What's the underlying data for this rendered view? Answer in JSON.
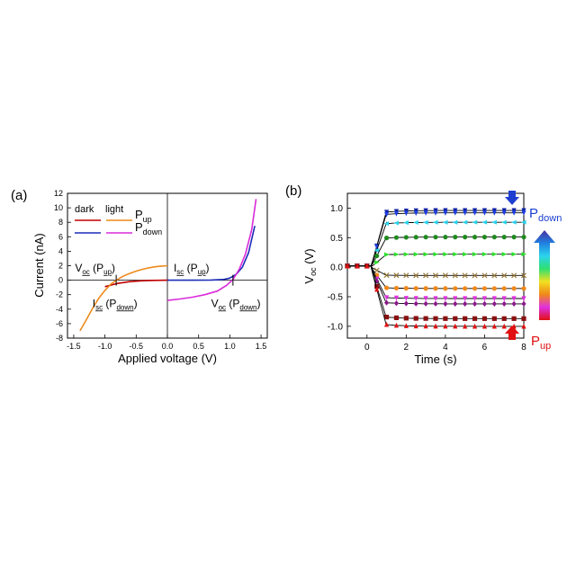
{
  "chart_data": [
    {
      "type": "line",
      "panel_label": "(a)",
      "xlabel": "Applied voltage (V)",
      "ylabel": "Current (nA)",
      "xlim": [
        -1.6,
        1.6
      ],
      "ylim": [
        -8,
        12
      ],
      "xticks": [
        -1.5,
        -1.0,
        -0.5,
        0.0,
        0.5,
        1.0,
        1.5
      ],
      "xtick_labels": [
        "-1.5",
        "-1.0",
        "-0.5",
        "0.0",
        "0.5",
        "1.0",
        "1.5"
      ],
      "yticks": [
        -8,
        -6,
        -4,
        -2,
        0,
        2,
        4,
        6,
        8,
        10,
        12
      ],
      "ytick_labels": [
        "-8",
        "-6",
        "-4",
        "-2",
        "0",
        "2",
        "4",
        "6",
        "8",
        "10",
        "12"
      ],
      "grid": false,
      "legend": {
        "placement": "top-left",
        "header_dark": "dark",
        "header_light": "light",
        "rows": [
          {
            "main": "P",
            "sub": "up",
            "dark_color": "#c00000",
            "light_color": "#ed8a1a"
          },
          {
            "main": "P",
            "sub": "down",
            "dark_color": "#1c2cb8",
            "light_color": "#d92bd9"
          }
        ]
      },
      "series": [
        {
          "legend": "P_up dark",
          "color": "#c00000",
          "points": [
            [
              -1.0,
              -0.9
            ],
            [
              -0.8,
              -0.45
            ],
            [
              -0.6,
              -0.2
            ],
            [
              -0.4,
              -0.08
            ],
            [
              -0.2,
              -0.03
            ],
            [
              0.0,
              0.0
            ]
          ]
        },
        {
          "legend": "P_up light",
          "color": "#ed8a1a",
          "points": [
            [
              -1.4,
              -7.0
            ],
            [
              -1.3,
              -5.5
            ],
            [
              -1.2,
              -3.9
            ],
            [
              -1.1,
              -2.5
            ],
            [
              -1.0,
              -1.4
            ],
            [
              -0.9,
              -0.5
            ],
            [
              -0.8,
              0.1
            ],
            [
              -0.7,
              0.6
            ],
            [
              -0.6,
              0.95
            ],
            [
              -0.5,
              1.25
            ],
            [
              -0.4,
              1.5
            ],
            [
              -0.3,
              1.7
            ],
            [
              -0.2,
              1.85
            ],
            [
              -0.1,
              1.95
            ],
            [
              0.0,
              2.0
            ]
          ]
        },
        {
          "legend": "P_down dark",
          "color": "#1c2cb8",
          "points": [
            [
              0.0,
              0.0
            ],
            [
              0.4,
              0.0
            ],
            [
              0.7,
              0.02
            ],
            [
              0.9,
              0.1
            ],
            [
              1.0,
              0.3
            ],
            [
              1.1,
              0.8
            ],
            [
              1.2,
              1.8
            ],
            [
              1.3,
              3.8
            ],
            [
              1.4,
              7.5
            ]
          ]
        },
        {
          "legend": "P_down light",
          "color": "#d92bd9",
          "points": [
            [
              0.0,
              -2.8
            ],
            [
              0.2,
              -2.6
            ],
            [
              0.4,
              -2.35
            ],
            [
              0.6,
              -2.0
            ],
            [
              0.8,
              -1.5
            ],
            [
              0.95,
              -0.7
            ],
            [
              1.05,
              0.1
            ],
            [
              1.15,
              1.5
            ],
            [
              1.25,
              3.6
            ],
            [
              1.35,
              7.0
            ],
            [
              1.42,
              11.2
            ]
          ]
        }
      ],
      "annotations": [
        {
          "main": "V",
          "sub": "oc",
          "rest": " (P",
          "rest_sub": "up",
          "close": ")",
          "x": -1.48,
          "y": 1.2
        },
        {
          "main": "I",
          "sub": "sc",
          "rest": " (P",
          "rest_sub": "down",
          "close": ")",
          "x": -1.2,
          "y": -3.7
        },
        {
          "main": "I",
          "sub": "sc",
          "rest": " (P",
          "rest_sub": "up",
          "close": ")",
          "x": 0.1,
          "y": 1.2
        },
        {
          "main": "V",
          "sub": "oc",
          "rest": " (P",
          "rest_sub": "down",
          "close": ")",
          "x": 0.7,
          "y": -3.7
        }
      ],
      "markers": [
        {
          "x": -0.82,
          "y": 0.0
        },
        {
          "x": 1.05,
          "y": 0.0
        }
      ]
    },
    {
      "type": "line",
      "panel_label": "(b)",
      "xlabel": "Time (s)",
      "ylabel_main": "V",
      "ylabel_sub": "oc",
      "ylabel_unit": " (V)",
      "xlim": [
        -1,
        8
      ],
      "ylim": [
        -1.2,
        1.25
      ],
      "xticks": [
        0,
        2,
        4,
        6,
        8
      ],
      "xtick_labels": [
        "0",
        "2",
        "4",
        "6",
        "8"
      ],
      "yticks": [
        -1.0,
        -0.5,
        0.0,
        0.5,
        1.0
      ],
      "ytick_labels": [
        "-1.0",
        "-0.5",
        "0.0",
        "0.5",
        "1.0"
      ],
      "grid": false,
      "x_points": [
        -1.0,
        -0.5,
        0.0,
        0.5,
        1.0,
        1.5,
        2.0,
        2.5,
        3.0,
        3.5,
        4.0,
        4.5,
        5.0,
        5.5,
        6.0,
        6.5,
        7.0,
        7.5,
        8.0
      ],
      "series": [
        {
          "color": "#0a1fa8",
          "marker": "triangle-down",
          "final": 0.96,
          "overshoot": 0.02
        },
        {
          "color": "#1f3fe0",
          "marker": "triangle-down",
          "final": 0.92,
          "overshoot": 0.02
        },
        {
          "color": "#2bd3ee",
          "marker": "triangle-left",
          "final": 0.76,
          "overshoot": 0
        },
        {
          "color": "#1f8a1f",
          "marker": "circle",
          "final": 0.51,
          "overshoot": 0
        },
        {
          "color": "#2ee02e",
          "marker": "triangle-right",
          "final": 0.22,
          "overshoot": 0
        },
        {
          "color": "#9a7a3a",
          "marker": "cross",
          "final": -0.14,
          "overshoot": 0
        },
        {
          "color": "#f0881a",
          "marker": "circle",
          "final": -0.36,
          "overshoot": 0
        },
        {
          "color": "#e030e0",
          "marker": "triangle-down",
          "final": -0.53,
          "overshoot": 0
        },
        {
          "color": "#8a1a8a",
          "marker": "diamond",
          "final": -0.62,
          "overshoot": 0
        },
        {
          "color": "#8a1010",
          "marker": "square",
          "final": -0.87,
          "overshoot": 0
        },
        {
          "color": "#e01010",
          "marker": "triangle-up",
          "final": -1.0,
          "overshoot": 0
        }
      ],
      "colorbar": {
        "top_main": "P",
        "top_sub": "down",
        "top_color": "#1c3fd0",
        "bottom_main": "P",
        "bottom_sub": "up",
        "bottom_color": "#e01010",
        "stops": [
          "#4a2fa0",
          "#1f7fe0",
          "#2bd3ee",
          "#2ee070",
          "#f2e020",
          "#f0881a",
          "#e030e0",
          "#e01010"
        ]
      },
      "arrows": [
        {
          "direction": "down",
          "color": "#1c3fd0"
        },
        {
          "direction": "up",
          "color": "#e01010"
        }
      ]
    }
  ]
}
